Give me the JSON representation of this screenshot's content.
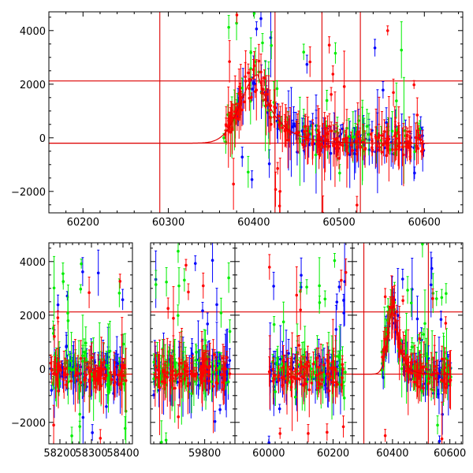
{
  "chart_data": [
    {
      "type": "scatter",
      "panel": "top",
      "title": "",
      "xlabel": "",
      "ylabel": "",
      "xlim": [
        60160,
        60645
      ],
      "ylim": [
        -2800,
        4700
      ],
      "xticks": [
        60200,
        60300,
        60400,
        60500,
        60600
      ],
      "xtick_labels": [
        "60200",
        "60300",
        "60400",
        "60500",
        "60600"
      ],
      "yticks": [
        -2000,
        0,
        2000,
        4000
      ],
      "ytick_labels": [
        "−2000",
        "0",
        "2000",
        "4000"
      ],
      "grid": false,
      "hlines": [
        2120,
        -200
      ],
      "vlines": [
        60290,
        60425,
        60480,
        60525
      ],
      "flare_model": {
        "baseline": -200,
        "peak_x": 60405,
        "peak_y": 2350,
        "rise_width": 28,
        "decay_tau": 22
      },
      "series": [
        {
          "color": "#0000ff",
          "x_range": [
            60365,
            60600
          ],
          "y_baseline": -100,
          "scatter": 600,
          "outlier_fraction": 0.12,
          "count": 110
        },
        {
          "color": "#00ee00",
          "x_range": [
            60365,
            60600
          ],
          "y_baseline": -100,
          "scatter": 700,
          "outlier_fraction": 0.14,
          "count": 100
        },
        {
          "color": "#ff0000",
          "x_range": [
            60362,
            60605
          ],
          "y_baseline": -200,
          "scatter": 450,
          "outlier_fraction": 0.1,
          "count": 230
        }
      ]
    },
    {
      "type": "scatter",
      "panel": "bottom",
      "title": "",
      "xlabel": "",
      "ylabel": "",
      "ylim": [
        -2800,
        4700
      ],
      "yticks": [
        -2000,
        0,
        2000,
        4000
      ],
      "ytick_labels": [
        "−2000",
        "0",
        "2000",
        "4000"
      ],
      "grid": false,
      "hlines": [
        2120,
        -200
      ],
      "segments": [
        {
          "xlim": [
            58165,
            58430
          ],
          "xticks": [
            58200,
            58300,
            58400
          ],
          "xtick_labels": [
            "58200",
            "58300",
            "58400"
          ],
          "data_range": [
            58170,
            58410
          ],
          "vlines": []
        },
        {
          "xlim": [
            59630,
            59895
          ],
          "xticks": [
            59800
          ],
          "xtick_labels": [
            "59800"
          ],
          "data_range": [
            59640,
            59880
          ],
          "vlines": []
        },
        {
          "xlim": [
            59895,
            60260
          ],
          "xticks": [
            60000,
            60200
          ],
          "xtick_labels": [
            "60000",
            "60200"
          ],
          "data_range": [
            60000,
            60240
          ],
          "vlines": []
        },
        {
          "xlim": [
            60260,
            60645
          ],
          "xticks": [
            60400,
            60600
          ],
          "xtick_labels": [
            "60400",
            "60600"
          ],
          "data_range": [
            60362,
            60605
          ],
          "vlines": [
            60300,
            60525
          ],
          "flare": true
        }
      ],
      "series": [
        {
          "color": "#0000ff",
          "y_baseline": -100,
          "scatter": 650,
          "outlier_fraction": 0.12
        },
        {
          "color": "#00ee00",
          "y_baseline": -100,
          "scatter": 750,
          "outlier_fraction": 0.15
        },
        {
          "color": "#ff0000",
          "y_baseline": -200,
          "scatter": 500,
          "outlier_fraction": 0.1
        }
      ]
    }
  ]
}
